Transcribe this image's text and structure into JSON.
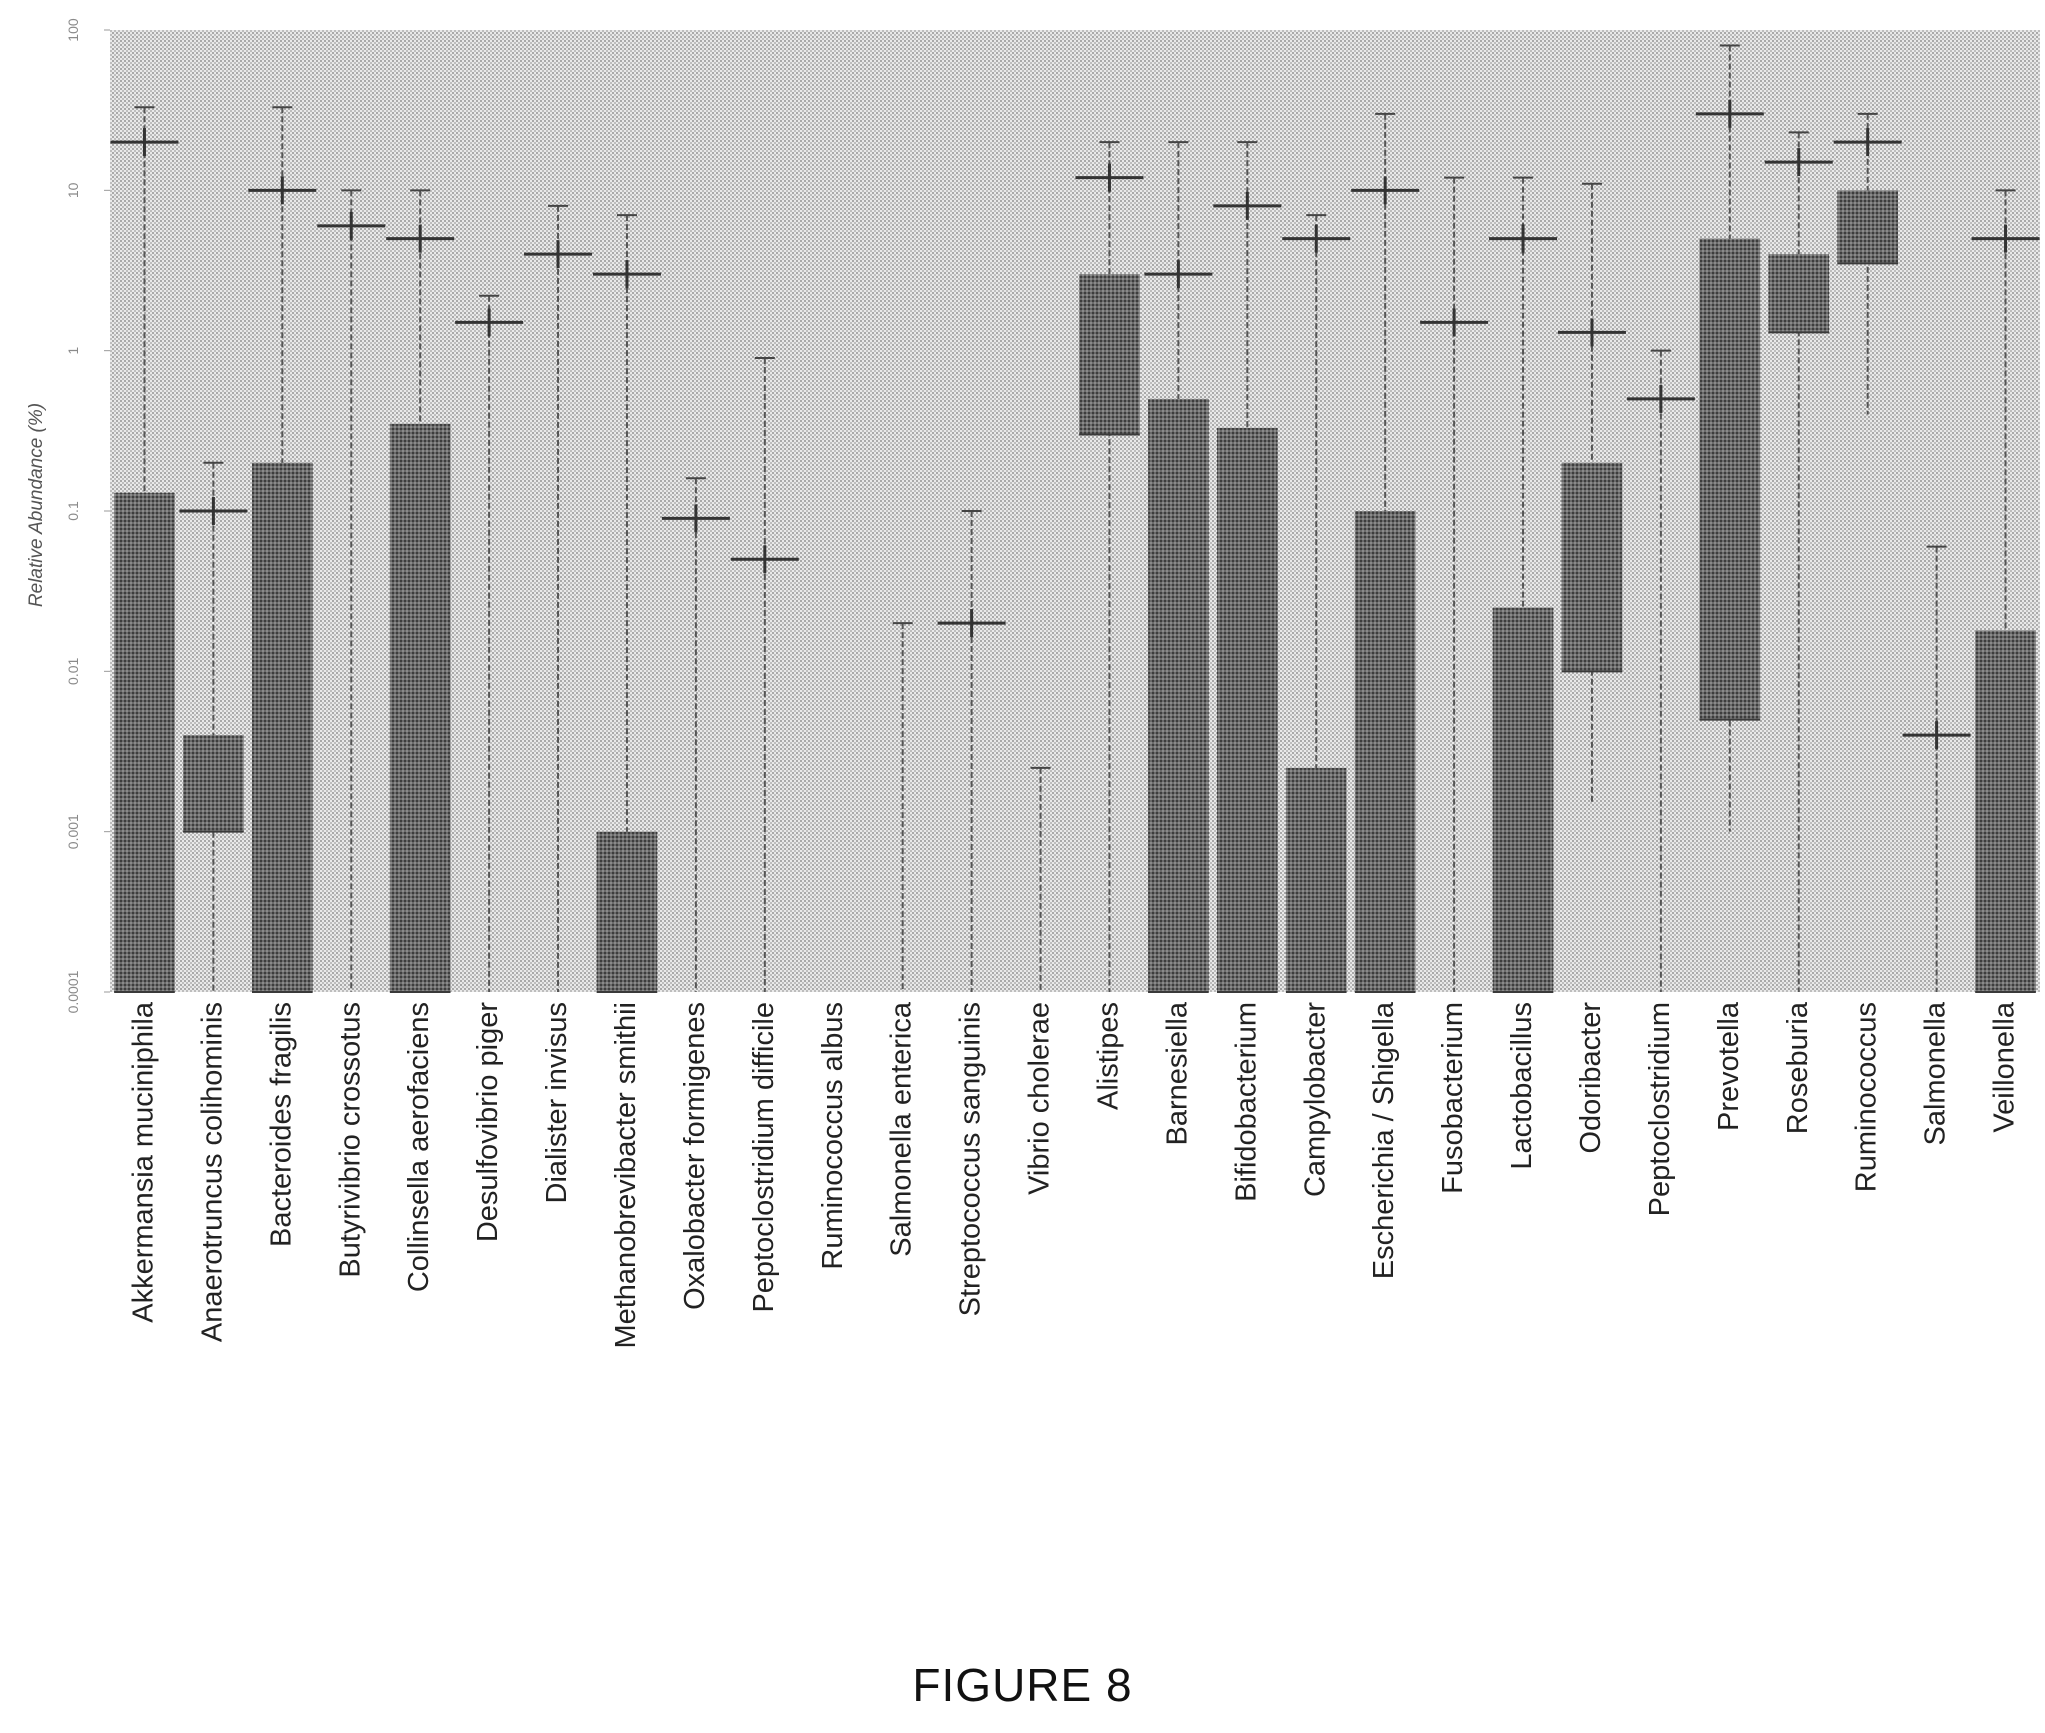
{
  "caption": "FIGURE 8",
  "chart_data": {
    "type": "box",
    "title": "",
    "xlabel": "",
    "ylabel": "Relative Abundance (%)",
    "yscale": "log",
    "ylim": [
      0.0001,
      100
    ],
    "yticks": [
      0.0001,
      0.001,
      0.01,
      0.1,
      1,
      10,
      100
    ],
    "ytick_labels": [
      "0.0001",
      "0.001",
      "0.01",
      "0.1",
      "1",
      "10",
      "100"
    ],
    "grid": false,
    "background": "stippled grey",
    "colors": {
      "box": "#5c5c5c",
      "whisker": "#4a4a4a",
      "background": "#d7d7d7"
    },
    "categories": [
      "Akkermansia muciniphila",
      "Anaerotruncus colihominis",
      "Bacteroides fragilis",
      "Butyrivibrio crossotus",
      "Collinsella aerofaciens",
      "Desulfovibrio piger",
      "Dialister invisus",
      "Methanobrevibacter smithii",
      "Oxalobacter formigenes",
      "Peptoclostridium difficile",
      "Ruminococcus albus",
      "Salmonella enterica",
      "Streptococcus sanguinis",
      "Vibrio cholerae",
      "Alistipes",
      "Barnesiella",
      "Bifidobacterium",
      "Campylobacter",
      "Escherichia / Shigella",
      "Fusobacterium",
      "Lactobacillus",
      "Odoribacter",
      "Peptoclostridium",
      "Prevotella",
      "Roseburia",
      "Ruminococcus",
      "Salmonella",
      "Veillonella"
    ],
    "boxes": [
      {
        "low": 0.0001,
        "q1": 0.0001,
        "median": 0.0001,
        "q3": 0.13,
        "high": 33
      },
      {
        "low": 0.0001,
        "q1": 0.001,
        "median": 0.001,
        "q3": 0.004,
        "high": 0.2
      },
      {
        "low": 0.0001,
        "q1": 0.0001,
        "median": 0.0001,
        "q3": 0.2,
        "high": 33
      },
      {
        "low": 0.0001,
        "q1": 0.0001,
        "median": 0.0001,
        "q3": 0.0001,
        "high": 10
      },
      {
        "low": 0.0001,
        "q1": 0.0001,
        "median": 0.0001,
        "q3": 0.35,
        "high": 10
      },
      {
        "low": 0.0001,
        "q1": 0.0001,
        "median": 0.0001,
        "q3": 0.0001,
        "high": 2.2
      },
      {
        "low": 0.0001,
        "q1": 0.0001,
        "median": 0.0001,
        "q3": 0.0001,
        "high": 8
      },
      {
        "low": 0.0001,
        "q1": 0.0001,
        "median": 0.0001,
        "q3": 0.001,
        "high": 7
      },
      {
        "low": 0.0001,
        "q1": 0.0001,
        "median": 0.0001,
        "q3": 0.0001,
        "high": 0.16
      },
      {
        "low": 0.0001,
        "q1": 0.0001,
        "median": 0.0001,
        "q3": 0.0001,
        "high": 0.9
      },
      {
        "low": 0.0001,
        "q1": 0.0001,
        "median": 0.0001,
        "q3": 0.0001,
        "high": 0.0001
      },
      {
        "low": 0.0001,
        "q1": 0.0001,
        "median": 0.0001,
        "q3": 0.0001,
        "high": 0.02
      },
      {
        "low": 0.0001,
        "q1": 0.0001,
        "median": 0.0001,
        "q3": 0.0001,
        "high": 0.1
      },
      {
        "low": 0.0001,
        "q1": 0.0001,
        "median": 0.0001,
        "q3": 0.0001,
        "high": 0.0025
      },
      {
        "low": 0.0001,
        "q1": 0.3,
        "median": 0.3,
        "q3": 3,
        "high": 20
      },
      {
        "low": 0.0001,
        "q1": 0.0001,
        "median": 0.0001,
        "q3": 0.5,
        "high": 20
      },
      {
        "low": 0.0001,
        "q1": 0.0001,
        "median": 0.0001,
        "q3": 0.33,
        "high": 20
      },
      {
        "low": 0.0001,
        "q1": 0.0001,
        "median": 0.0001,
        "q3": 0.0025,
        "high": 7
      },
      {
        "low": 0.0001,
        "q1": 0.0001,
        "median": 0.0001,
        "q3": 0.1,
        "high": 30
      },
      {
        "low": 0.0001,
        "q1": 0.0001,
        "median": 0.0001,
        "q3": 0.0001,
        "high": 12
      },
      {
        "low": 0.0001,
        "q1": 0.0001,
        "median": 0.0001,
        "q3": 0.025,
        "high": 12
      },
      {
        "low": 0.0015,
        "q1": 0.01,
        "median": 0.01,
        "q3": 0.2,
        "high": 11
      },
      {
        "low": 0.0001,
        "q1": 0.0001,
        "median": 0.0001,
        "q3": 0.0001,
        "high": 1
      },
      {
        "low": 0.001,
        "q1": 0.005,
        "median": 0.005,
        "q3": 5,
        "high": 80
      },
      {
        "low": 0.0001,
        "q1": 1.3,
        "median": 1.3,
        "q3": 4,
        "high": 23
      },
      {
        "low": 0.4,
        "q1": 3.5,
        "median": 3.5,
        "q3": 10,
        "high": 30
      },
      {
        "low": 0.0001,
        "q1": 0.0001,
        "median": 0.0001,
        "q3": 0.0001,
        "high": 0.06
      },
      {
        "low": 0.0001,
        "q1": 0.0001,
        "median": 0.0001,
        "q3": 0.018,
        "high": 10
      }
    ],
    "means": [
      20,
      0.1,
      10,
      6,
      5,
      1.5,
      4,
      3,
      0.09,
      0.05,
      null,
      null,
      0.02,
      null,
      12,
      3,
      8,
      5,
      10,
      1.5,
      5,
      1.3,
      0.5,
      30,
      15,
      20,
      0.004,
      5
    ]
  }
}
